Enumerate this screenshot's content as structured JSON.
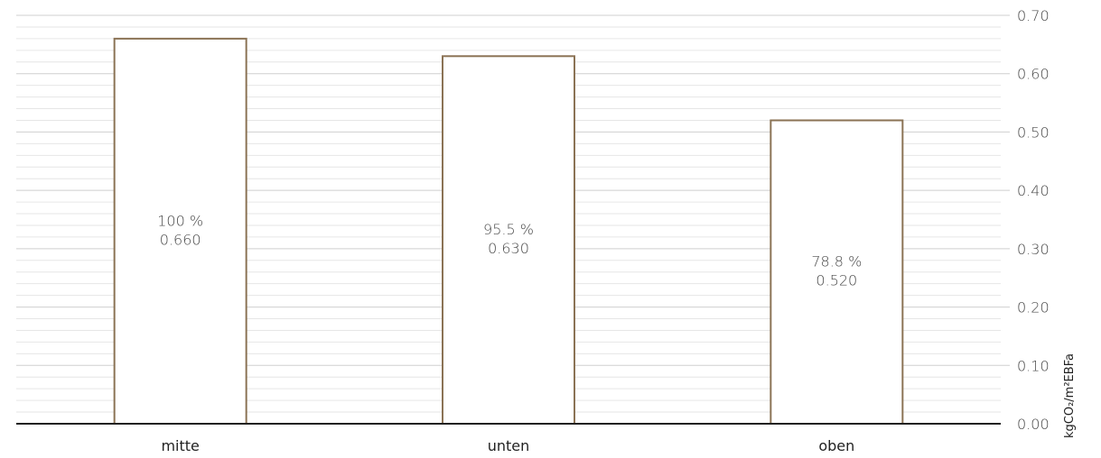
{
  "chart_data": {
    "type": "bar",
    "categories": [
      "mitte",
      "unten",
      "oben"
    ],
    "values": [
      0.66,
      0.63,
      0.52
    ],
    "data_labels": [
      {
        "percent": "100 %",
        "value": "0.660"
      },
      {
        "percent": "95.5 %",
        "value": "0.630"
      },
      {
        "percent": "78.8 %",
        "value": "0.520"
      }
    ],
    "title": "",
    "xlabel": "",
    "ylabel": "kgCO₂/m²EBFa",
    "ylim": [
      0,
      0.7
    ],
    "y_ticks": [
      0.0,
      0.1,
      0.2,
      0.3,
      0.4,
      0.5,
      0.6,
      0.7
    ],
    "y_tick_labels": [
      "0.00",
      "0.10",
      "0.20",
      "0.30",
      "0.40",
      "0.50",
      "0.60",
      "0.70"
    ],
    "y_axis_side": "right",
    "grid": true,
    "legend": "none",
    "colors": {
      "bar_outline": "#8b7355",
      "bar_fill": "#ffffff",
      "axis": "#222222"
    }
  }
}
